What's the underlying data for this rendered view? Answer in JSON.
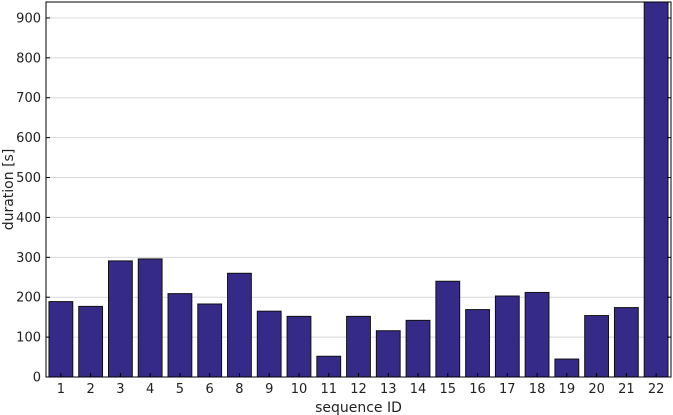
{
  "chart_data": {
    "type": "bar",
    "title": "",
    "xlabel": "sequence ID",
    "ylabel": "duration [s]",
    "ylim": [
      0,
      940
    ],
    "yticks": [
      0,
      100,
      200,
      300,
      400,
      500,
      600,
      700,
      800,
      900
    ],
    "grid": true,
    "categories": [
      "1",
      "2",
      "3",
      "4",
      "5",
      "6",
      "8",
      "9",
      "10",
      "11",
      "12",
      "13",
      "14",
      "15",
      "16",
      "17",
      "18",
      "19",
      "20",
      "21",
      "22"
    ],
    "values": [
      189,
      177,
      291,
      296,
      209,
      183,
      260,
      165,
      152,
      52,
      152,
      116,
      142,
      240,
      169,
      203,
      212,
      45,
      154,
      174,
      940
    ],
    "colors": {
      "bar": "#362a88",
      "bar_edge": "#111111",
      "grid": "#d8d8d8",
      "axis": "#000000"
    }
  }
}
